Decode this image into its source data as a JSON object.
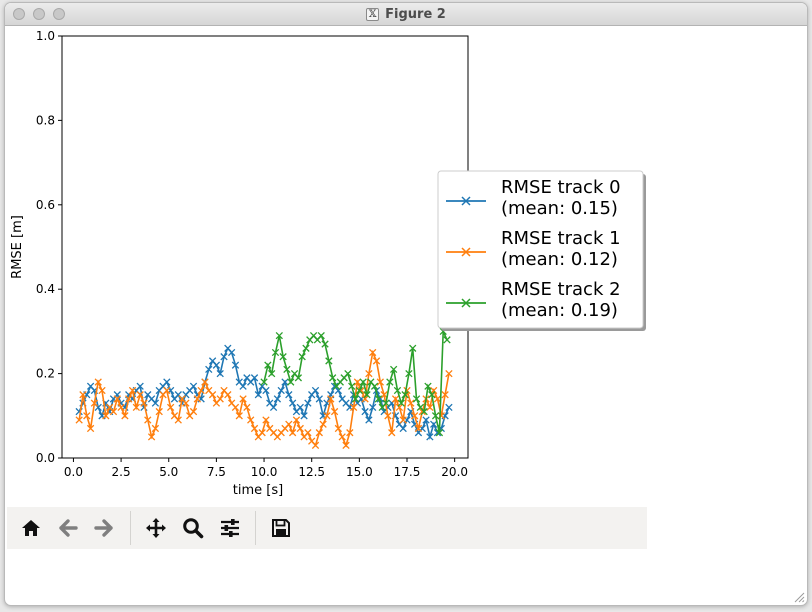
{
  "window": {
    "title": "Figure 2"
  },
  "toolbar": {
    "buttons": [
      {
        "name": "home-button",
        "icon": "home-icon"
      },
      {
        "name": "back-button",
        "icon": "arrow-left-icon"
      },
      {
        "name": "forward-button",
        "icon": "arrow-right-icon"
      },
      {
        "name": "pan-button",
        "icon": "move-icon"
      },
      {
        "name": "zoom-button",
        "icon": "magnifier-icon"
      },
      {
        "name": "configure-subplots-button",
        "icon": "sliders-icon"
      },
      {
        "name": "save-button",
        "icon": "floppy-disk-icon"
      }
    ]
  },
  "chart_data": {
    "type": "line",
    "title": "",
    "xlabel": "time [s]",
    "ylabel": "RMSE [m]",
    "xlim": [
      -0.6,
      20.7
    ],
    "ylim": [
      0.0,
      1.0
    ],
    "xticks": [
      0.0,
      2.5,
      5.0,
      7.5,
      10.0,
      12.5,
      15.0,
      17.5,
      20.0
    ],
    "xtick_labels": [
      "0.0",
      "2.5",
      "5.0",
      "7.5",
      "10.0",
      "12.5",
      "15.0",
      "17.5",
      "20.0"
    ],
    "yticks": [
      0.0,
      0.2,
      0.4,
      0.6,
      0.8,
      1.0
    ],
    "ytick_labels": [
      "0.0",
      "0.2",
      "0.4",
      "0.6",
      "0.8",
      "1.0"
    ],
    "grid": false,
    "marker": "x",
    "legend": {
      "placement": "right-outside"
    },
    "series": [
      {
        "name": "RMSE track 0\n(mean: 0.15)",
        "color": "#1f77b4",
        "x": [
          0.3,
          0.5,
          0.7,
          0.9,
          1.1,
          1.3,
          1.5,
          1.7,
          1.9,
          2.1,
          2.3,
          2.5,
          2.7,
          2.9,
          3.1,
          3.3,
          3.5,
          3.7,
          3.9,
          4.1,
          4.3,
          4.5,
          4.7,
          4.9,
          5.1,
          5.3,
          5.5,
          5.7,
          5.9,
          6.1,
          6.3,
          6.5,
          6.7,
          6.9,
          7.1,
          7.3,
          7.5,
          7.7,
          7.9,
          8.1,
          8.3,
          8.5,
          8.7,
          8.9,
          9.1,
          9.3,
          9.5,
          9.7,
          9.9,
          10.1,
          10.3,
          10.5,
          10.7,
          10.9,
          11.1,
          11.3,
          11.5,
          11.7,
          11.9,
          12.1,
          12.3,
          12.5,
          12.7,
          12.9,
          13.1,
          13.3,
          13.5,
          13.7,
          13.9,
          14.1,
          14.3,
          14.5,
          14.7,
          14.9,
          15.1,
          15.3,
          15.5,
          15.7,
          15.9,
          16.1,
          16.3,
          16.5,
          16.7,
          16.9,
          17.1,
          17.3,
          17.5,
          17.7,
          17.9,
          18.1,
          18.3,
          18.5,
          18.7,
          18.9,
          19.1,
          19.3,
          19.5,
          19.7
        ],
        "y": [
          0.11,
          0.13,
          0.15,
          0.17,
          0.16,
          0.12,
          0.1,
          0.13,
          0.11,
          0.14,
          0.15,
          0.13,
          0.12,
          0.15,
          0.14,
          0.16,
          0.17,
          0.12,
          0.15,
          0.14,
          0.13,
          0.16,
          0.17,
          0.18,
          0.16,
          0.14,
          0.15,
          0.13,
          0.15,
          0.16,
          0.17,
          0.15,
          0.14,
          0.18,
          0.21,
          0.23,
          0.22,
          0.2,
          0.24,
          0.26,
          0.25,
          0.22,
          0.18,
          0.17,
          0.19,
          0.18,
          0.19,
          0.15,
          0.17,
          0.16,
          0.13,
          0.12,
          0.14,
          0.16,
          0.18,
          0.15,
          0.13,
          0.11,
          0.12,
          0.1,
          0.13,
          0.15,
          0.16,
          0.14,
          0.1,
          0.13,
          0.15,
          0.17,
          0.16,
          0.14,
          0.13,
          0.12,
          0.15,
          0.13,
          0.14,
          0.11,
          0.09,
          0.12,
          0.16,
          0.14,
          0.11,
          0.12,
          0.13,
          0.1,
          0.08,
          0.07,
          0.09,
          0.11,
          0.08,
          0.06,
          0.07,
          0.09,
          0.05,
          0.08,
          0.06,
          0.07,
          0.1,
          0.12
        ]
      },
      {
        "name": "RMSE track 1\n(mean: 0.12)",
        "color": "#ff7f0e",
        "x": [
          0.3,
          0.5,
          0.7,
          0.9,
          1.1,
          1.3,
          1.5,
          1.7,
          1.9,
          2.1,
          2.3,
          2.5,
          2.7,
          2.9,
          3.1,
          3.3,
          3.5,
          3.7,
          3.9,
          4.1,
          4.3,
          4.5,
          4.7,
          4.9,
          5.1,
          5.3,
          5.5,
          5.7,
          5.9,
          6.1,
          6.3,
          6.5,
          6.7,
          6.9,
          7.1,
          7.3,
          7.5,
          7.7,
          7.9,
          8.1,
          8.3,
          8.5,
          8.7,
          8.9,
          9.1,
          9.3,
          9.5,
          9.7,
          9.9,
          10.1,
          10.3,
          10.5,
          10.7,
          10.9,
          11.1,
          11.3,
          11.5,
          11.7,
          11.9,
          12.1,
          12.3,
          12.5,
          12.7,
          12.9,
          13.1,
          13.3,
          13.5,
          13.7,
          13.9,
          14.1,
          14.3,
          14.5,
          14.7,
          14.9,
          15.1,
          15.3,
          15.5,
          15.7,
          15.9,
          16.1,
          16.3,
          16.5,
          16.7,
          16.9,
          17.1,
          17.3,
          17.5,
          17.7,
          17.9,
          18.1,
          18.3,
          18.5,
          18.7,
          18.9,
          19.1,
          19.3,
          19.5,
          19.7
        ],
        "y": [
          0.09,
          0.15,
          0.1,
          0.07,
          0.13,
          0.18,
          0.16,
          0.1,
          0.12,
          0.11,
          0.14,
          0.12,
          0.1,
          0.14,
          0.16,
          0.12,
          0.15,
          0.13,
          0.09,
          0.05,
          0.07,
          0.11,
          0.15,
          0.16,
          0.12,
          0.1,
          0.09,
          0.14,
          0.13,
          0.1,
          0.11,
          0.14,
          0.16,
          0.18,
          0.16,
          0.15,
          0.13,
          0.14,
          0.16,
          0.15,
          0.13,
          0.12,
          0.1,
          0.14,
          0.12,
          0.09,
          0.07,
          0.05,
          0.06,
          0.09,
          0.07,
          0.06,
          0.05,
          0.06,
          0.07,
          0.08,
          0.06,
          0.09,
          0.07,
          0.05,
          0.06,
          0.04,
          0.03,
          0.06,
          0.08,
          0.1,
          0.14,
          0.11,
          0.07,
          0.05,
          0.03,
          0.06,
          0.12,
          0.18,
          0.16,
          0.14,
          0.2,
          0.25,
          0.23,
          0.18,
          0.15,
          0.1,
          0.06,
          0.14,
          0.12,
          0.09,
          0.16,
          0.13,
          0.1,
          0.07,
          0.11,
          0.14,
          0.12,
          0.16,
          0.14,
          0.1,
          0.15,
          0.2
        ]
      },
      {
        "name": "RMSE track 2\n(mean: 0.19)",
        "color": "#2ca02c",
        "x": [
          10.0,
          10.2,
          10.4,
          10.6,
          10.8,
          11.0,
          11.2,
          11.4,
          11.6,
          11.8,
          12.0,
          12.2,
          12.4,
          12.6,
          12.8,
          13.0,
          13.2,
          13.4,
          13.6,
          13.8,
          14.0,
          14.2,
          14.4,
          14.6,
          14.8,
          15.0,
          15.2,
          15.4,
          15.6,
          15.8,
          16.0,
          16.2,
          16.4,
          16.6,
          16.8,
          17.0,
          17.2,
          17.4,
          17.6,
          17.8,
          18.0,
          18.2,
          18.4,
          18.6,
          18.8,
          19.0,
          19.2,
          19.4,
          19.6
        ],
        "y": [
          0.18,
          0.22,
          0.2,
          0.25,
          0.29,
          0.24,
          0.21,
          0.18,
          0.2,
          0.19,
          0.24,
          0.26,
          0.28,
          0.29,
          0.28,
          0.29,
          0.27,
          0.23,
          0.19,
          0.17,
          0.18,
          0.19,
          0.2,
          0.17,
          0.14,
          0.16,
          0.18,
          0.15,
          0.18,
          0.17,
          0.14,
          0.12,
          0.13,
          0.18,
          0.21,
          0.16,
          0.13,
          0.15,
          0.2,
          0.26,
          0.14,
          0.12,
          0.11,
          0.17,
          0.15,
          0.1,
          0.06,
          0.3,
          0.28
        ]
      }
    ]
  }
}
